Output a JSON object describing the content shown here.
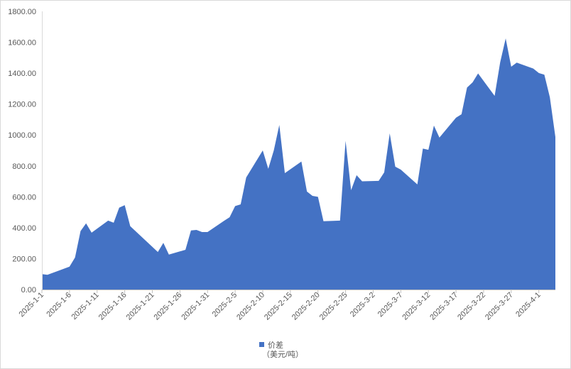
{
  "chart_data": {
    "type": "area",
    "legend": "bottom",
    "grid": false,
    "xlim": [
      "2025-01-01",
      "2025-04-04"
    ],
    "ylim": [
      0,
      1800
    ],
    "y_ticks": [
      "0.00",
      "200.00",
      "400.00",
      "600.00",
      "800.00",
      "1000.00",
      "1200.00",
      "1400.00",
      "1600.00",
      "1800.00"
    ],
    "x_ticks": [
      "2025-1-1",
      "2025-1-6",
      "2025-1-11",
      "2025-1-16",
      "2025-1-21",
      "2025-1-26",
      "2025-1-31",
      "2025-2-5",
      "2025-2-10",
      "2025-2-15",
      "2025-2-20",
      "2025-2-25",
      "2025-3-2",
      "2025-3-7",
      "2025-3-12",
      "2025-3-17",
      "2025-3-22",
      "2025-3-27",
      "2025-4-1"
    ],
    "x": [
      "2025-01-01",
      "2025-01-02",
      "2025-01-06",
      "2025-01-07",
      "2025-01-08",
      "2025-01-09",
      "2025-01-10",
      "2025-01-13",
      "2025-01-14",
      "2025-01-15",
      "2025-01-16",
      "2025-01-17",
      "2025-01-22",
      "2025-01-23",
      "2025-01-24",
      "2025-01-27",
      "2025-01-28",
      "2025-01-29",
      "2025-01-30",
      "2025-01-31",
      "2025-02-03",
      "2025-02-04",
      "2025-02-05",
      "2025-02-06",
      "2025-02-07",
      "2025-02-10",
      "2025-02-11",
      "2025-02-12",
      "2025-02-13",
      "2025-02-14",
      "2025-02-17",
      "2025-02-18",
      "2025-02-19",
      "2025-02-20",
      "2025-02-21",
      "2025-02-24",
      "2025-02-25",
      "2025-02-26",
      "2025-02-27",
      "2025-02-28",
      "2025-03-03",
      "2025-03-04",
      "2025-03-05",
      "2025-03-06",
      "2025-03-07",
      "2025-03-10",
      "2025-03-11",
      "2025-03-12",
      "2025-03-13",
      "2025-03-14",
      "2025-03-17",
      "2025-03-18",
      "2025-03-19",
      "2025-03-20",
      "2025-03-21",
      "2025-03-24",
      "2025-03-25",
      "2025-03-26",
      "2025-03-27",
      "2025-03-28",
      "2025-03-31",
      "2025-04-01",
      "2025-04-02",
      "2025-04-03",
      "2025-04-04"
    ],
    "series": [
      {
        "name": "价差",
        "unit": "（美元/吨）",
        "color": "#4472C4",
        "values": [
          100,
          95,
          148,
          207,
          378,
          428,
          368,
          446,
          432,
          530,
          546,
          410,
          243,
          302,
          226,
          257,
          382,
          386,
          372,
          372,
          445,
          468,
          540,
          551,
          725,
          900,
          781,
          900,
          1065,
          753,
          828,
          634,
          606,
          600,
          442,
          446,
          962,
          643,
          740,
          700,
          703,
          758,
          1010,
          795,
          776,
          680,
          912,
          904,
          1061,
          983,
          1112,
          1134,
          1307,
          1340,
          1398,
          1253,
          1470,
          1625,
          1442,
          1468,
          1430,
          1401,
          1390,
          1244,
          987
        ]
      }
    ]
  }
}
